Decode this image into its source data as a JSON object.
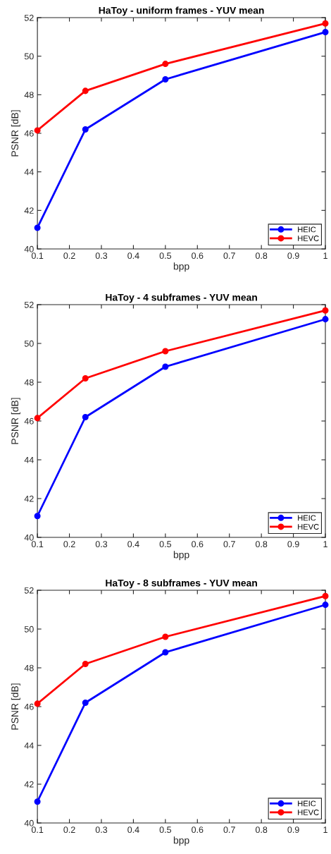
{
  "chart_data": [
    {
      "type": "line",
      "title": "HaToy - uniform frames - YUV mean",
      "xlabel": "bpp",
      "ylabel": "PSNR [dB]",
      "x": [
        0.1,
        0.25,
        0.5,
        1
      ],
      "series": [
        {
          "name": "HEIC",
          "color": "#0000ff",
          "values": [
            41.1,
            46.2,
            48.8,
            51.25
          ]
        },
        {
          "name": "HEVC",
          "color": "#ff0000",
          "values": [
            46.15,
            48.2,
            49.6,
            51.7
          ]
        }
      ],
      "xlim": [
        0.1,
        1
      ],
      "xticks": [
        0.1,
        0.2,
        0.3,
        0.4,
        0.5,
        0.6,
        0.7,
        0.8,
        0.9,
        1
      ],
      "ylim": [
        40,
        52
      ],
      "yticks": [
        40,
        42,
        44,
        46,
        48,
        50,
        52
      ],
      "legend": "bottom right",
      "marker": "circle",
      "line_style": "solid"
    },
    {
      "type": "line",
      "title": "HaToy - 4 subframes - YUV mean",
      "xlabel": "bpp",
      "ylabel": "PSNR [dB]",
      "x": [
        0.1,
        0.25,
        0.5,
        1
      ],
      "series": [
        {
          "name": "HEIC",
          "color": "#0000ff",
          "values": [
            41.1,
            46.2,
            48.8,
            51.25
          ]
        },
        {
          "name": "HEVC",
          "color": "#ff0000",
          "values": [
            46.15,
            48.2,
            49.6,
            51.7
          ]
        }
      ],
      "xlim": [
        0.1,
        1
      ],
      "xticks": [
        0.1,
        0.2,
        0.3,
        0.4,
        0.5,
        0.6,
        0.7,
        0.8,
        0.9,
        1
      ],
      "ylim": [
        40,
        52
      ],
      "yticks": [
        40,
        42,
        44,
        46,
        48,
        50,
        52
      ],
      "legend": "bottom right",
      "marker": "circle",
      "line_style": "solid"
    },
    {
      "type": "line",
      "title": "HaToy - 8 subframes - YUV mean",
      "xlabel": "bpp",
      "ylabel": "PSNR [dB]",
      "x": [
        0.1,
        0.25,
        0.5,
        1
      ],
      "series": [
        {
          "name": "HEIC",
          "color": "#0000ff",
          "values": [
            41.1,
            46.2,
            48.8,
            51.25
          ]
        },
        {
          "name": "HEVC",
          "color": "#ff0000",
          "values": [
            46.15,
            48.2,
            49.6,
            51.7
          ]
        }
      ],
      "xlim": [
        0.1,
        1
      ],
      "xticks": [
        0.1,
        0.2,
        0.3,
        0.4,
        0.5,
        0.6,
        0.7,
        0.8,
        0.9,
        1
      ],
      "ylim": [
        40,
        52
      ],
      "yticks": [
        40,
        42,
        44,
        46,
        48,
        50,
        52
      ],
      "legend": "bottom right",
      "marker": "circle",
      "line_style": "solid"
    }
  ]
}
